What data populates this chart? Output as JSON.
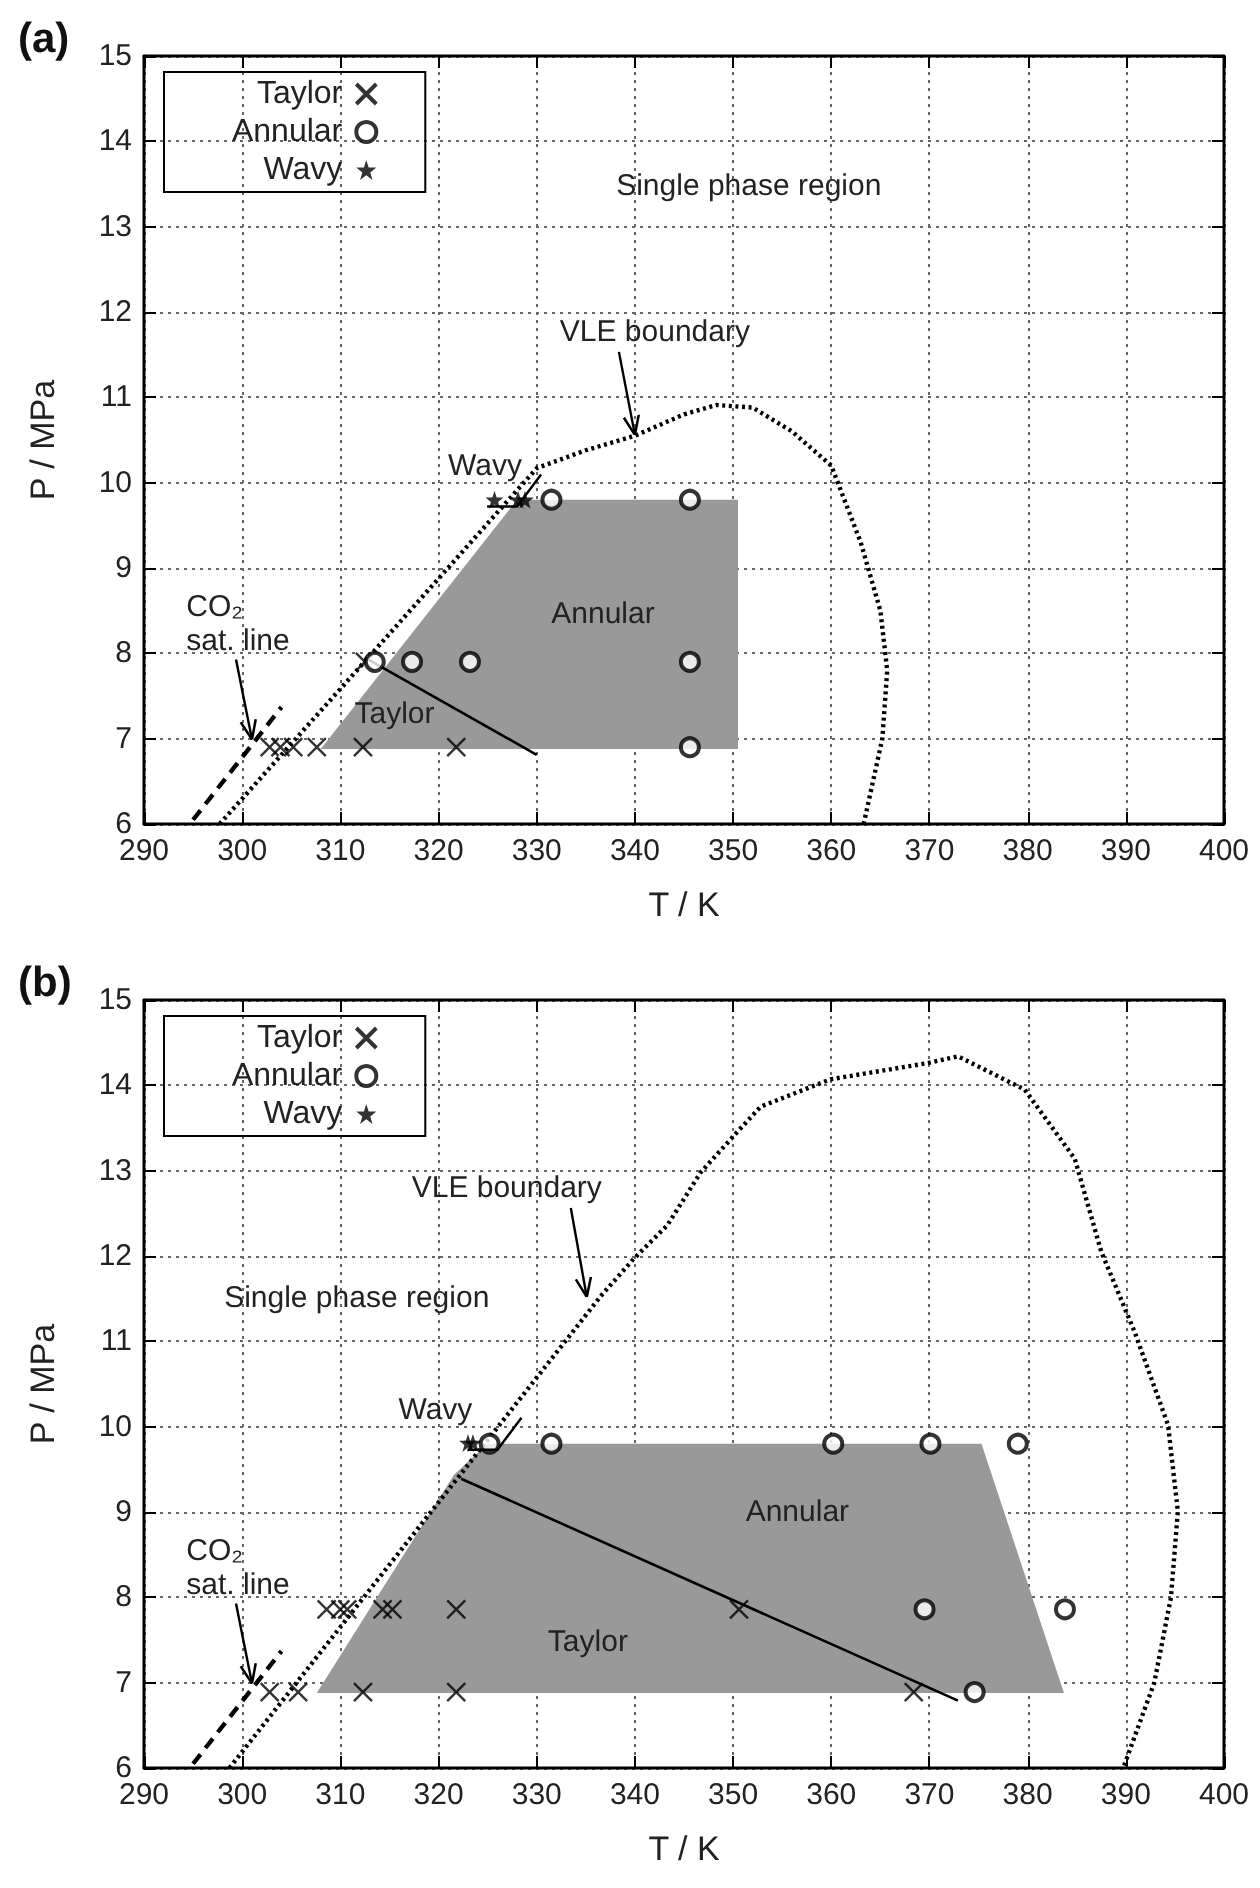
{
  "chart_data": [
    {
      "type": "scatter",
      "title": "(a)",
      "xlabel": "T / K",
      "ylabel": "P / MPa",
      "xlim": [
        290,
        400
      ],
      "ylim": [
        6,
        15
      ],
      "xticks": [
        290,
        300,
        310,
        320,
        330,
        340,
        350,
        360,
        370,
        380,
        390,
        400
      ],
      "yticks": [
        6,
        7,
        8,
        9,
        10,
        11,
        12,
        13,
        14,
        15
      ],
      "grid": true,
      "legend": "top left",
      "series": [
        {
          "type": "area",
          "color": "#999999",
          "x": [
            308,
            328,
            350.5,
            350.5,
            308
          ],
          "values": [
            6.88,
            9.8,
            9.8,
            6.88,
            6.88
          ]
        },
        {
          "type": "line",
          "color": "#000000",
          "line_style": "solid",
          "marker": "none",
          "x": [
            312.5,
            330
          ],
          "values": [
            7.95,
            6.81
          ]
        },
        {
          "type": "line",
          "color": "#000000",
          "line_style": "dotted",
          "marker": "none",
          "x": [
            297.7,
            313,
            330,
            335,
            340,
            345,
            348.3,
            352,
            356,
            360,
            363,
            365,
            365.7,
            365.2,
            363.3
          ],
          "values": [
            6,
            7.97,
            10.17,
            10.38,
            10.55,
            10.8,
            10.91,
            10.88,
            10.6,
            10.2,
            9.3,
            8.5,
            7.8,
            7,
            6
          ]
        },
        {
          "type": "line",
          "color": "#000000",
          "line_style": "dashed",
          "marker": "none",
          "x": [
            295,
            304
          ],
          "values": [
            6.05,
            7.37
          ]
        },
        {
          "name": "Taylor",
          "color": "#000000",
          "marker": "cross",
          "x": [
            302.8,
            303.9,
            305.2,
            307.6,
            312.3,
            321.8,
            312.5
          ],
          "values": [
            6.9,
            6.9,
            6.9,
            6.9,
            6.9,
            6.9,
            7.9
          ]
        },
        {
          "name": "Annular",
          "color": "#000000",
          "marker": "circle",
          "x": [
            313.5,
            317.3,
            323.2,
            331.5,
            345.6,
            345.6,
            345.6
          ],
          "values": [
            7.9,
            7.9,
            7.9,
            9.8,
            9.8,
            7.9,
            6.9
          ]
        },
        {
          "name": "Wavy",
          "color": "#000000",
          "marker": "star",
          "x": [
            325.7,
            328.1,
            328.8
          ],
          "values": [
            9.8,
            9.8,
            9.8
          ]
        }
      ],
      "annotations": [
        "Single phase region",
        {
          "text": "VLE boundary",
          "x": 340,
          "y": 10.56
        },
        {
          "text": "Wavy",
          "x": 328,
          "y": 9.72
        },
        "Annular",
        "Taylor",
        {
          "text": "CO₂ sat. line",
          "x": 301,
          "y": 6.99
        }
      ]
    },
    {
      "type": "scatter",
      "title": "(b)",
      "xlabel": "T / K",
      "ylabel": "P / MPa",
      "xlim": [
        290,
        400
      ],
      "ylim": [
        6,
        15
      ],
      "xticks": [
        290,
        300,
        310,
        320,
        330,
        340,
        350,
        360,
        370,
        380,
        390,
        400
      ],
      "yticks": [
        6,
        7,
        8,
        9,
        10,
        11,
        12,
        13,
        14,
        15
      ],
      "grid": true,
      "legend": "top left",
      "series": [
        {
          "type": "area",
          "color": "#999999",
          "x": [
            307.6,
            321.6,
            325,
            375.3,
            383.7,
            307.6
          ],
          "values": [
            6.88,
            9.44,
            9.8,
            9.8,
            6.88,
            6.88
          ]
        },
        {
          "type": "line",
          "color": "#000000",
          "line_style": "solid",
          "marker": "none",
          "x": [
            322.3,
            372.9
          ],
          "values": [
            9.39,
            6.79
          ]
        },
        {
          "type": "line",
          "color": "#000000",
          "line_style": "dotted",
          "marker": "none",
          "x": [
            298.7,
            336.6,
            339.9,
            343.3,
            346.7,
            350.4,
            352.8,
            359.9,
            369.8,
            372.9,
            379.7,
            384.8,
            387.5,
            390.9,
            394.3,
            395.3,
            394.6,
            392.9,
            389.8
          ],
          "values": [
            6,
            11.54,
            11.97,
            12.36,
            12.98,
            13.45,
            13.75,
            14.07,
            14.26,
            14.34,
            13.95,
            13.14,
            12.05,
            11.11,
            10.02,
            9.01,
            8,
            7,
            6.02
          ]
        },
        {
          "type": "line",
          "color": "#000000",
          "line_style": "dashed",
          "marker": "none",
          "x": [
            295,
            304
          ],
          "values": [
            6.05,
            7.37
          ]
        },
        {
          "name": "Taylor",
          "color": "#000000",
          "marker": "cross",
          "x": [
            302.8,
            305.7,
            312.3,
            321.8,
            368.4,
            308.6,
            310,
            310.7,
            314.3,
            315.3,
            321.8,
            350.6
          ],
          "values": [
            6.89,
            6.89,
            6.89,
            6.89,
            6.89,
            7.86,
            7.86,
            7.86,
            7.86,
            7.86,
            7.86,
            7.86
          ]
        },
        {
          "name": "Annular",
          "color": "#000000",
          "marker": "circle",
          "x": [
            325.2,
            331.5,
            360.2,
            370.1,
            379,
            369.5,
            383.8,
            374.6
          ],
          "values": [
            9.8,
            9.8,
            9.8,
            9.8,
            9.8,
            7.86,
            7.86,
            6.89
          ]
        },
        {
          "name": "Wavy",
          "color": "#000000",
          "marker": "star",
          "x": [
            323,
            323.5
          ],
          "values": [
            9.81,
            9.81
          ]
        }
      ],
      "annotations": [
        {
          "text": "VLE boundary",
          "x": 335.1,
          "y": 11.52
        },
        "Single phase region",
        {
          "text": "Wavy",
          "x": 326,
          "y": 9.73
        },
        "Annular",
        "Taylor",
        {
          "text": "CO₂ sat. line",
          "x": 301,
          "y": 6.99
        }
      ]
    }
  ]
}
